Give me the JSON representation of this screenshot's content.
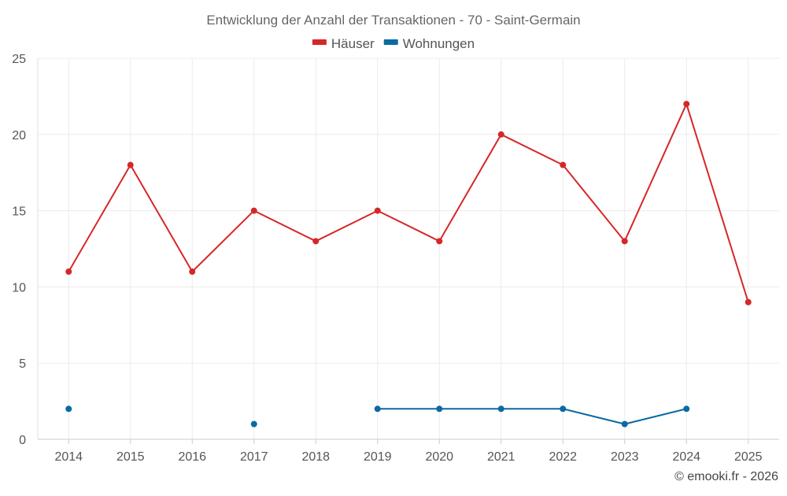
{
  "chart_data": {
    "type": "line",
    "title": "Entwicklung der Anzahl der Transaktionen - 70 - Saint-Germain",
    "xlabel": "",
    "ylabel": "",
    "categories": [
      "2014",
      "2015",
      "2016",
      "2017",
      "2018",
      "2019",
      "2020",
      "2021",
      "2022",
      "2023",
      "2024",
      "2025"
    ],
    "ylim": [
      0,
      25
    ],
    "yticks": [
      0,
      5,
      10,
      15,
      20,
      25
    ],
    "grid": true,
    "legend_position": "top-center",
    "series": [
      {
        "name": "Häuser",
        "color": "#d62728",
        "values": [
          11,
          18,
          11,
          15,
          13,
          15,
          13,
          20,
          18,
          13,
          22,
          9
        ]
      },
      {
        "name": "Wohnungen",
        "color": "#0b6aa2",
        "values": [
          2,
          null,
          null,
          1,
          null,
          2,
          2,
          2,
          2,
          1,
          2,
          null
        ]
      }
    ]
  },
  "credit": "© emooki.fr - 2026"
}
